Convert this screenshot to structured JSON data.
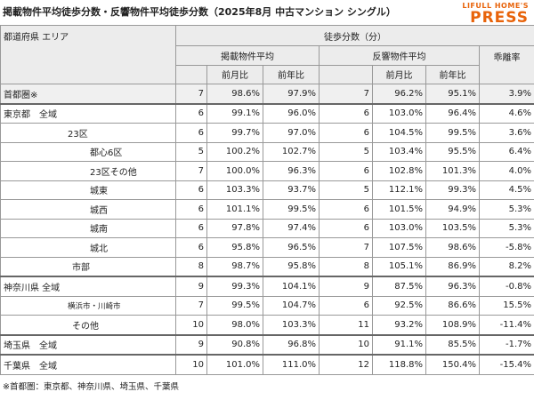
{
  "header": {
    "title": "掲載物件平均徒歩分数・反響物件平均徒歩分数（2025年8月 中古マンション シングル）",
    "logo_top": "LIFULL HOME'S",
    "logo_main": "PRESS"
  },
  "table": {
    "columns": {
      "area": "都道府県 エリア",
      "group": "徒歩分数（分）",
      "listed": "掲載物件平均",
      "inquired": "反響物件平均",
      "gap": "乖離率",
      "mom1": "前月比",
      "yoy1": "前年比",
      "mom2": "前月比",
      "yoy2": "前年比"
    },
    "rows": [
      [
        "首都圏※",
        "7",
        "98.6%",
        "97.9%",
        "7",
        "96.2%",
        "95.1%",
        "3.9%"
      ],
      [
        "東京都　全域",
        "6",
        "99.1%",
        "96.0%",
        "6",
        "103.0%",
        "96.4%",
        "4.6%"
      ],
      [
        "23区",
        "6",
        "99.7%",
        "97.0%",
        "6",
        "104.5%",
        "99.5%",
        "3.6%"
      ],
      [
        "都心6区",
        "5",
        "100.2%",
        "102.7%",
        "5",
        "103.4%",
        "95.5%",
        "6.4%"
      ],
      [
        "23区その他",
        "7",
        "100.0%",
        "96.3%",
        "6",
        "102.8%",
        "101.3%",
        "4.0%"
      ],
      [
        "城東",
        "6",
        "103.3%",
        "93.7%",
        "5",
        "112.1%",
        "99.3%",
        "4.5%"
      ],
      [
        "城西",
        "6",
        "101.1%",
        "99.5%",
        "6",
        "101.5%",
        "94.9%",
        "5.3%"
      ],
      [
        "城南",
        "6",
        "97.8%",
        "97.4%",
        "6",
        "103.0%",
        "103.5%",
        "5.3%"
      ],
      [
        "城北",
        "6",
        "95.8%",
        "96.5%",
        "7",
        "107.5%",
        "98.6%",
        "-5.8%"
      ],
      [
        "市部",
        "8",
        "98.7%",
        "95.8%",
        "8",
        "105.1%",
        "86.9%",
        "8.2%"
      ],
      [
        "神奈川県 全域",
        "9",
        "99.3%",
        "104.1%",
        "9",
        "87.5%",
        "96.3%",
        "-0.8%"
      ],
      [
        "横浜市・川崎市",
        "7",
        "99.5%",
        "104.7%",
        "6",
        "92.5%",
        "86.6%",
        "15.5%"
      ],
      [
        "その他",
        "10",
        "98.0%",
        "103.3%",
        "11",
        "93.2%",
        "108.9%",
        "-11.4%"
      ],
      [
        "埼玉県　全域",
        "9",
        "90.8%",
        "96.8%",
        "10",
        "91.1%",
        "85.5%",
        "-1.7%"
      ],
      [
        "千葉県　全域",
        "10",
        "101.0%",
        "111.0%",
        "12",
        "118.8%",
        "150.4%",
        "-15.4%"
      ]
    ]
  },
  "footnote": "※首都圏：東京都、神奈川県、埼玉県、千葉県"
}
